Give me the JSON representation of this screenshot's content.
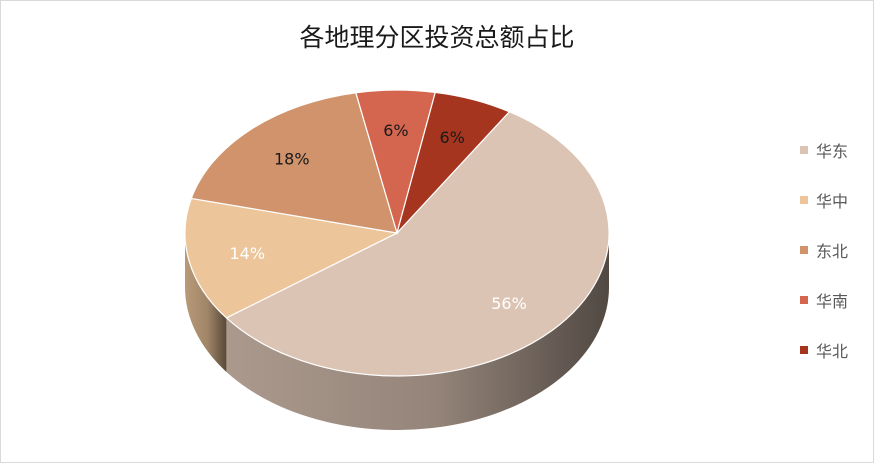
{
  "title": "各地理分区投资总额占比",
  "chart_data": {
    "type": "pie",
    "title": "各地理分区投资总额占比",
    "categories": [
      "华东",
      "华中",
      "东北",
      "华南",
      "华北"
    ],
    "values": [
      56,
      14,
      18,
      6,
      6
    ],
    "labels": [
      "56%",
      "14%",
      "18%",
      "6%",
      "6%"
    ],
    "colors": [
      "#dcc4b4",
      "#ecc69a",
      "#d0936c",
      "#d4654f",
      "#a6351f"
    ],
    "legend_position": "right",
    "style": "3d"
  }
}
